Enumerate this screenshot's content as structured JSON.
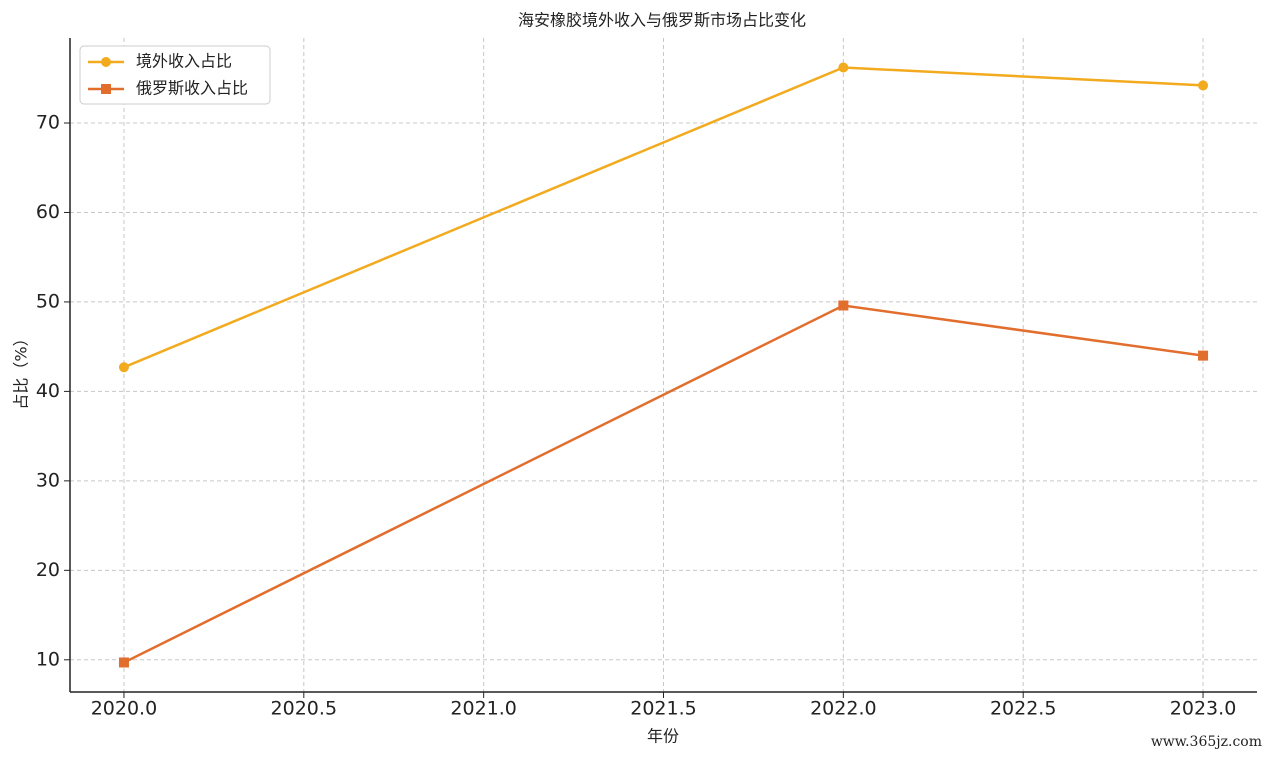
{
  "chart_data": {
    "type": "line",
    "title": "海安橡胶境外收入与俄罗斯市场占比变化",
    "xlabel": "年份",
    "ylabel": "占比（%）",
    "x": [
      2020,
      2022,
      2023
    ],
    "series": [
      {
        "name": "境外收入占比",
        "color": "#f2aa1f",
        "marker": "circle",
        "values": [
          42.7,
          76.2,
          74.2
        ]
      },
      {
        "name": "俄罗斯收入占比",
        "color": "#e26e2e",
        "marker": "square",
        "values": [
          9.7,
          49.6,
          44.0
        ]
      }
    ],
    "xlim": [
      2019.85,
      2023.15
    ],
    "xticks": [
      {
        "value": 2020,
        "label": "2020.0"
      },
      2020.5,
      {
        "value": 2021,
        "label": "2021.0"
      },
      2021.5,
      {
        "value": 2022,
        "label": "2022.0"
      },
      2022.5,
      {
        "value": 2023,
        "label": "2023.0"
      }
    ],
    "ylim": [
      6.4,
      79.5
    ],
    "yticks": [
      10,
      20,
      30,
      40,
      50,
      60,
      70
    ],
    "grid": true,
    "legend": "upper left",
    "watermark": "www.365jz.com"
  }
}
